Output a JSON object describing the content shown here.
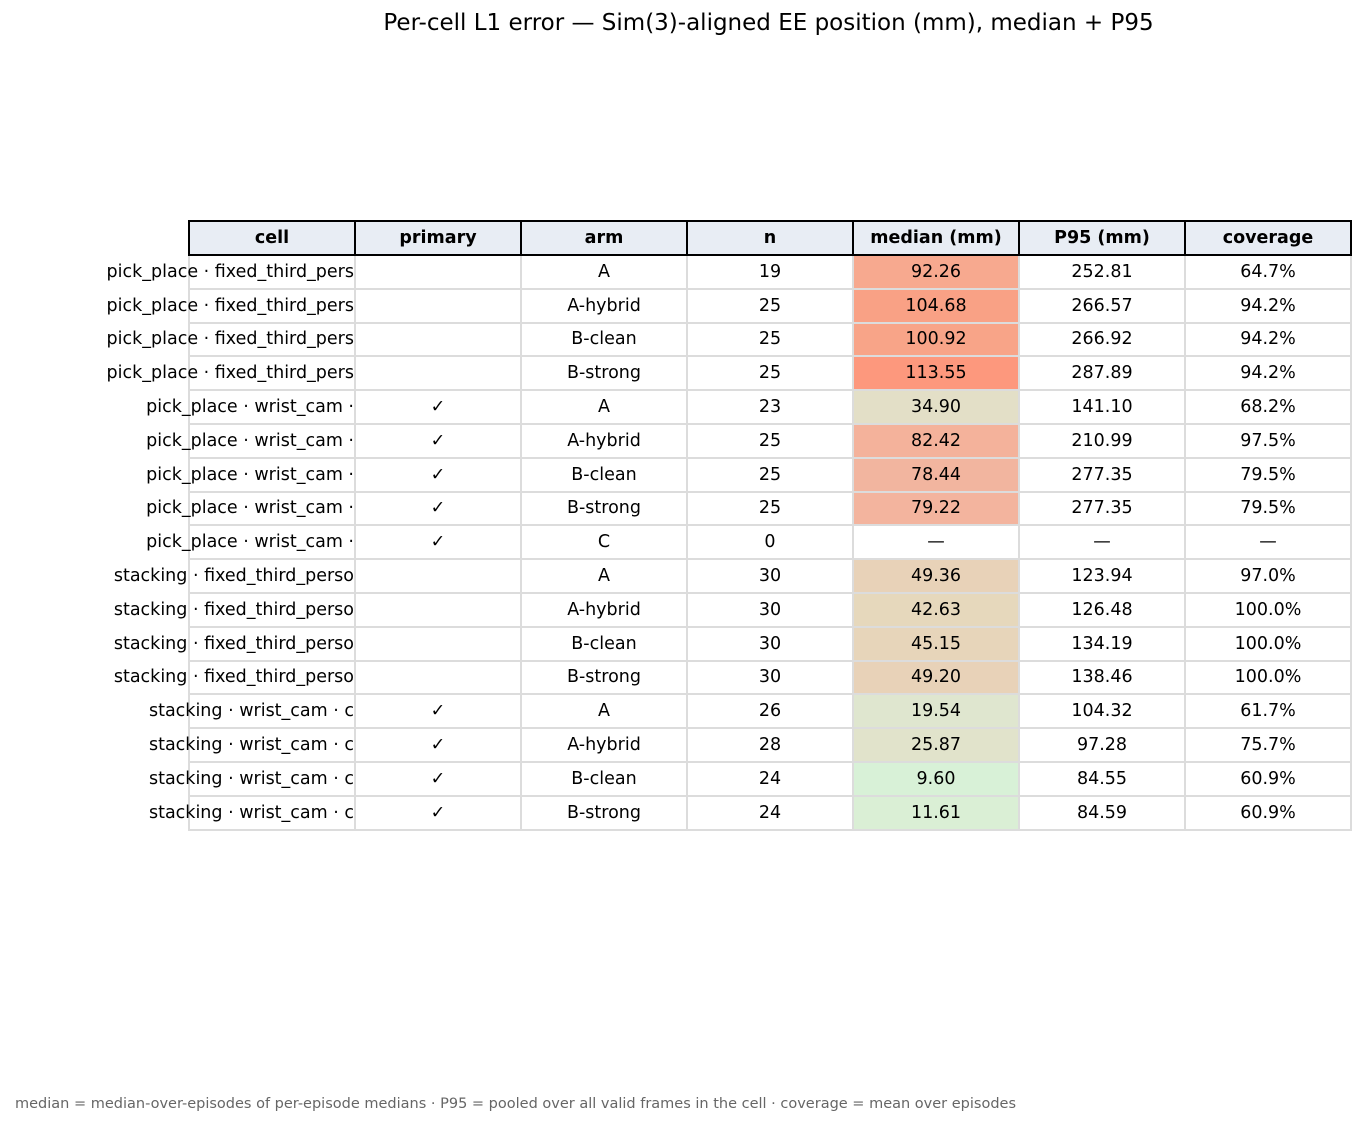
{
  "chart_data": {
    "type": "table",
    "title": "Per-cell L1 error — Sim(3)-aligned EE position (mm), median + P95",
    "columns": [
      "cell",
      "primary",
      "arm",
      "n",
      "median (mm)",
      "P95 (mm)",
      "coverage"
    ],
    "rows": [
      {
        "cell": "pick_place · fixed_third_pers",
        "primary": "",
        "arm": "A",
        "n": "19",
        "median": "92.26",
        "p95": "252.81",
        "coverage": "64.7%",
        "shade": "#f7a98f"
      },
      {
        "cell": "pick_place · fixed_third_pers",
        "primary": "",
        "arm": "A-hybrid",
        "n": "25",
        "median": "104.68",
        "p95": "266.57",
        "coverage": "94.2%",
        "shade": "#f9a185"
      },
      {
        "cell": "pick_place · fixed_third_pers",
        "primary": "",
        "arm": "B-clean",
        "n": "25",
        "median": "100.92",
        "p95": "266.92",
        "coverage": "94.2%",
        "shade": "#f8a488"
      },
      {
        "cell": "pick_place · fixed_third_pers",
        "primary": "",
        "arm": "B-strong",
        "n": "25",
        "median": "113.55",
        "p95": "287.89",
        "coverage": "94.2%",
        "shade": "#fd987d"
      },
      {
        "cell": "pick_place · wrist_cam ·",
        "primary": "✓",
        "arm": "A",
        "n": "23",
        "median": "34.90",
        "p95": "141.10",
        "coverage": "68.2%",
        "shade": "#e3dfc7"
      },
      {
        "cell": "pick_place · wrist_cam ·",
        "primary": "✓",
        "arm": "A-hybrid",
        "n": "25",
        "median": "82.42",
        "p95": "210.99",
        "coverage": "97.5%",
        "shade": "#f4b29b"
      },
      {
        "cell": "pick_place · wrist_cam ·",
        "primary": "✓",
        "arm": "B-clean",
        "n": "25",
        "median": "78.44",
        "p95": "277.35",
        "coverage": "79.5%",
        "shade": "#f2b59f"
      },
      {
        "cell": "pick_place · wrist_cam ·",
        "primary": "✓",
        "arm": "B-strong",
        "n": "25",
        "median": "79.22",
        "p95": "277.35",
        "coverage": "79.5%",
        "shade": "#f3b49e"
      },
      {
        "cell": "pick_place · wrist_cam ·",
        "primary": "✓",
        "arm": "C",
        "n": "0",
        "median": "—",
        "p95": "—",
        "coverage": "—",
        "shade": "#ffffff"
      },
      {
        "cell": "stacking · fixed_third_perso",
        "primary": "",
        "arm": "A",
        "n": "30",
        "median": "49.36",
        "p95": "123.94",
        "coverage": "97.0%",
        "shade": "#e8d2b8"
      },
      {
        "cell": "stacking · fixed_third_perso",
        "primary": "",
        "arm": "A-hybrid",
        "n": "30",
        "median": "42.63",
        "p95": "126.48",
        "coverage": "100.0%",
        "shade": "#e6d8bc"
      },
      {
        "cell": "stacking · fixed_third_perso",
        "primary": "",
        "arm": "B-clean",
        "n": "30",
        "median": "45.15",
        "p95": "134.19",
        "coverage": "100.0%",
        "shade": "#e7d5ba"
      },
      {
        "cell": "stacking · fixed_third_perso",
        "primary": "",
        "arm": "B-strong",
        "n": "30",
        "median": "49.20",
        "p95": "138.46",
        "coverage": "100.0%",
        "shade": "#e8d2b8"
      },
      {
        "cell": "stacking · wrist_cam · c",
        "primary": "✓",
        "arm": "A",
        "n": "26",
        "median": "19.54",
        "p95": "104.32",
        "coverage": "61.7%",
        "shade": "#dfe6cf"
      },
      {
        "cell": "stacking · wrist_cam · c",
        "primary": "✓",
        "arm": "A-hybrid",
        "n": "28",
        "median": "25.87",
        "p95": "97.28",
        "coverage": "75.7%",
        "shade": "#e1e3cb"
      },
      {
        "cell": "stacking · wrist_cam · c",
        "primary": "✓",
        "arm": "B-clean",
        "n": "24",
        "median": "9.60",
        "p95": "84.55",
        "coverage": "60.9%",
        "shade": "#d8f1d7"
      },
      {
        "cell": "stacking · wrist_cam · c",
        "primary": "✓",
        "arm": "B-strong",
        "n": "24",
        "median": "11.61",
        "p95": "84.59",
        "coverage": "60.9%",
        "shade": "#daefd5"
      }
    ]
  },
  "footnote": "median = median-over-episodes of per-episode medians · P95 = pooled over all valid frames in the cell · coverage = mean over episodes"
}
